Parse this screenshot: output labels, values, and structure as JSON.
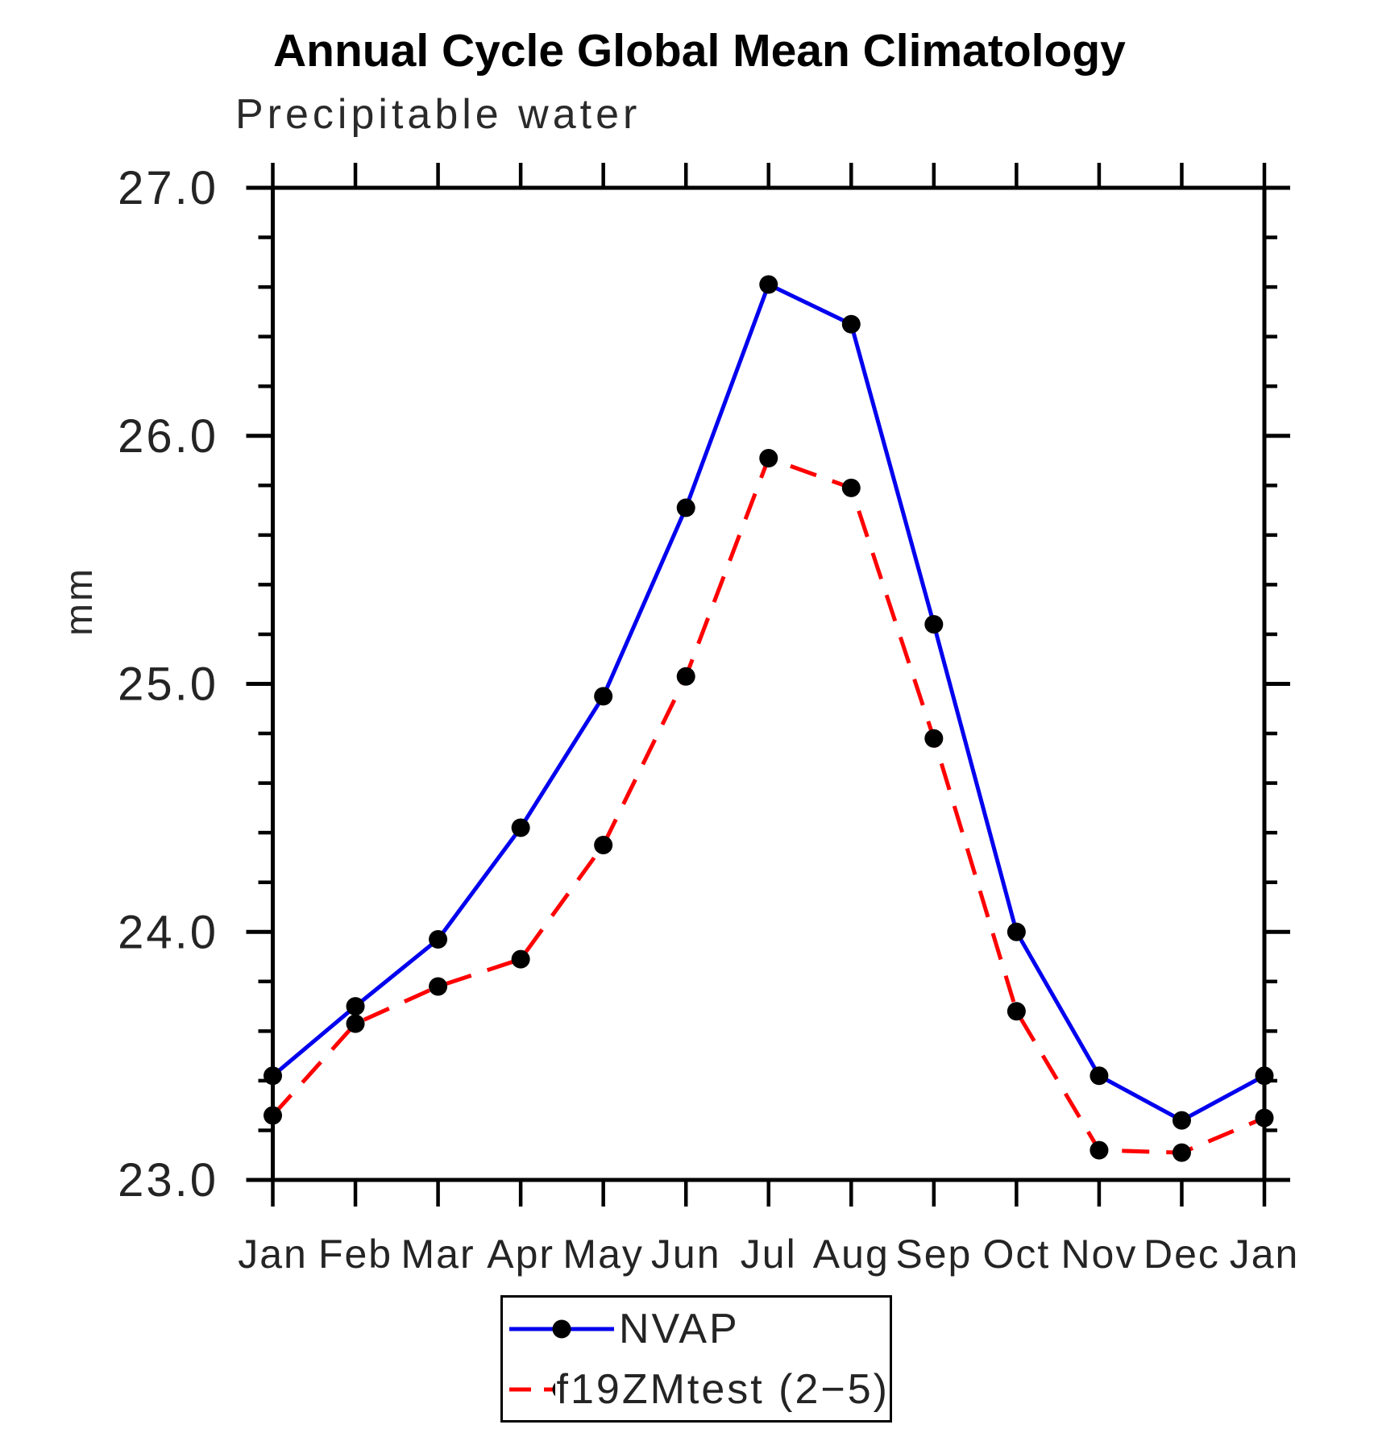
{
  "title": "Annual Cycle Global Mean Climatology",
  "subtitle": "Precipitable water",
  "y_axis_label": "mm",
  "legend": {
    "items": [
      {
        "label": "NVAP",
        "color": "#0000ee",
        "style": "solid"
      },
      {
        "label": "f19ZMtest (2−5)",
        "color": "#ff0000",
        "style": "dashed"
      }
    ]
  },
  "chart_data": {
    "type": "line",
    "title": "Annual Cycle Global Mean Climatology",
    "subtitle": "Precipitable water",
    "xlabel": "",
    "ylabel": "mm",
    "categories": [
      "Jan",
      "Feb",
      "Mar",
      "Apr",
      "May",
      "Jun",
      "Jul",
      "Aug",
      "Sep",
      "Oct",
      "Nov",
      "Dec",
      "Jan"
    ],
    "ylim": [
      23.0,
      27.0
    ],
    "y_major_ticks": [
      23.0,
      24.0,
      25.0,
      26.0,
      27.0
    ],
    "y_tick_labels": [
      "23.0",
      "24.0",
      "25.0",
      "26.0",
      "27.0"
    ],
    "y_minor_tick_interval": 0.2,
    "grid": false,
    "legend_position": "bottom-center",
    "marker": "filled-circle",
    "marker_color": "#000000",
    "axis_color": "#000000",
    "series": [
      {
        "name": "NVAP",
        "color": "#0000ee",
        "line_style": "solid",
        "values": [
          23.42,
          23.7,
          23.97,
          24.42,
          24.95,
          25.71,
          26.61,
          26.45,
          25.24,
          24.0,
          23.42,
          23.24,
          23.42
        ]
      },
      {
        "name": "f19ZMtest (2−5)",
        "color": "#ff0000",
        "line_style": "dashed",
        "values": [
          23.26,
          23.63,
          23.78,
          23.89,
          24.35,
          25.03,
          25.91,
          25.79,
          24.78,
          23.68,
          23.12,
          23.11,
          23.25
        ]
      }
    ]
  }
}
